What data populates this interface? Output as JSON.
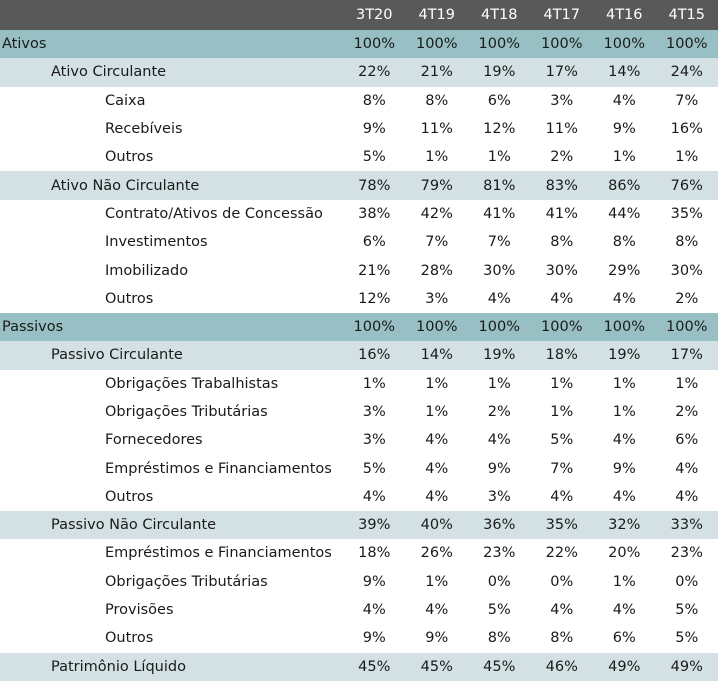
{
  "header": {
    "label": "",
    "periods": [
      "3T20",
      "4T19",
      "4T18",
      "4T17",
      "4T16",
      "4T15"
    ]
  },
  "rows": [
    {
      "level": 0,
      "label": "Ativos",
      "values": [
        "100%",
        "100%",
        "100%",
        "100%",
        "100%",
        "100%"
      ]
    },
    {
      "level": 1,
      "label": "Ativo Circulante",
      "values": [
        "22%",
        "21%",
        "19%",
        "17%",
        "14%",
        "24%"
      ]
    },
    {
      "level": 2,
      "label": "Caixa",
      "values": [
        "8%",
        "8%",
        "6%",
        "3%",
        "4%",
        "7%"
      ]
    },
    {
      "level": 2,
      "label": "Recebíveis",
      "values": [
        "9%",
        "11%",
        "12%",
        "11%",
        "9%",
        "16%"
      ]
    },
    {
      "level": 2,
      "label": "Outros",
      "values": [
        "5%",
        "1%",
        "1%",
        "2%",
        "1%",
        "1%"
      ]
    },
    {
      "level": 1,
      "label": "Ativo Não Circulante",
      "values": [
        "78%",
        "79%",
        "81%",
        "83%",
        "86%",
        "76%"
      ]
    },
    {
      "level": 2,
      "label": "Contrato/Ativos de Concessão",
      "values": [
        "38%",
        "42%",
        "41%",
        "41%",
        "44%",
        "35%"
      ]
    },
    {
      "level": 2,
      "label": "Investimentos",
      "values": [
        "6%",
        "7%",
        "7%",
        "8%",
        "8%",
        "8%"
      ]
    },
    {
      "level": 2,
      "label": "Imobilizado",
      "values": [
        "21%",
        "28%",
        "30%",
        "30%",
        "29%",
        "30%"
      ]
    },
    {
      "level": 2,
      "label": "Outros",
      "values": [
        "12%",
        "3%",
        "4%",
        "4%",
        "4%",
        "2%"
      ]
    },
    {
      "level": 0,
      "label": "Passivos",
      "values": [
        "100%",
        "100%",
        "100%",
        "100%",
        "100%",
        "100%"
      ]
    },
    {
      "level": 1,
      "label": "Passivo Circulante",
      "values": [
        "16%",
        "14%",
        "19%",
        "18%",
        "19%",
        "17%"
      ]
    },
    {
      "level": 2,
      "label": "Obrigações Trabalhistas",
      "values": [
        "1%",
        "1%",
        "1%",
        "1%",
        "1%",
        "1%"
      ]
    },
    {
      "level": 2,
      "label": "Obrigações Tributárias",
      "values": [
        "3%",
        "1%",
        "2%",
        "1%",
        "1%",
        "2%"
      ]
    },
    {
      "level": 2,
      "label": "Fornecedores",
      "values": [
        "3%",
        "4%",
        "4%",
        "5%",
        "4%",
        "6%"
      ]
    },
    {
      "level": 2,
      "label": "Empréstimos e Financiamentos",
      "values": [
        "5%",
        "4%",
        "9%",
        "7%",
        "9%",
        "4%"
      ]
    },
    {
      "level": 2,
      "label": "Outros",
      "values": [
        "4%",
        "4%",
        "3%",
        "4%",
        "4%",
        "4%"
      ]
    },
    {
      "level": 1,
      "label": "Passivo Não Circulante",
      "values": [
        "39%",
        "40%",
        "36%",
        "35%",
        "32%",
        "33%"
      ]
    },
    {
      "level": 2,
      "label": "Empréstimos e Financiamentos",
      "values": [
        "18%",
        "26%",
        "23%",
        "22%",
        "20%",
        "23%"
      ]
    },
    {
      "level": 2,
      "label": "Obrigações Tributárias",
      "values": [
        "9%",
        "1%",
        "0%",
        "0%",
        "1%",
        "0%"
      ]
    },
    {
      "level": 2,
      "label": "Provisões",
      "values": [
        "4%",
        "4%",
        "5%",
        "4%",
        "4%",
        "5%"
      ]
    },
    {
      "level": 2,
      "label": "Outros",
      "values": [
        "9%",
        "9%",
        "8%",
        "8%",
        "6%",
        "5%"
      ]
    },
    {
      "level": 1,
      "label": "Patrimônio Líquido",
      "values": [
        "45%",
        "45%",
        "45%",
        "46%",
        "49%",
        "49%"
      ]
    }
  ],
  "colors": {
    "header_bg": "#595959",
    "header_text": "#ffffff",
    "level0_bg": "#98c0c4",
    "level1_bg": "#d3e1e4",
    "level2_bg": "#ffffff"
  }
}
